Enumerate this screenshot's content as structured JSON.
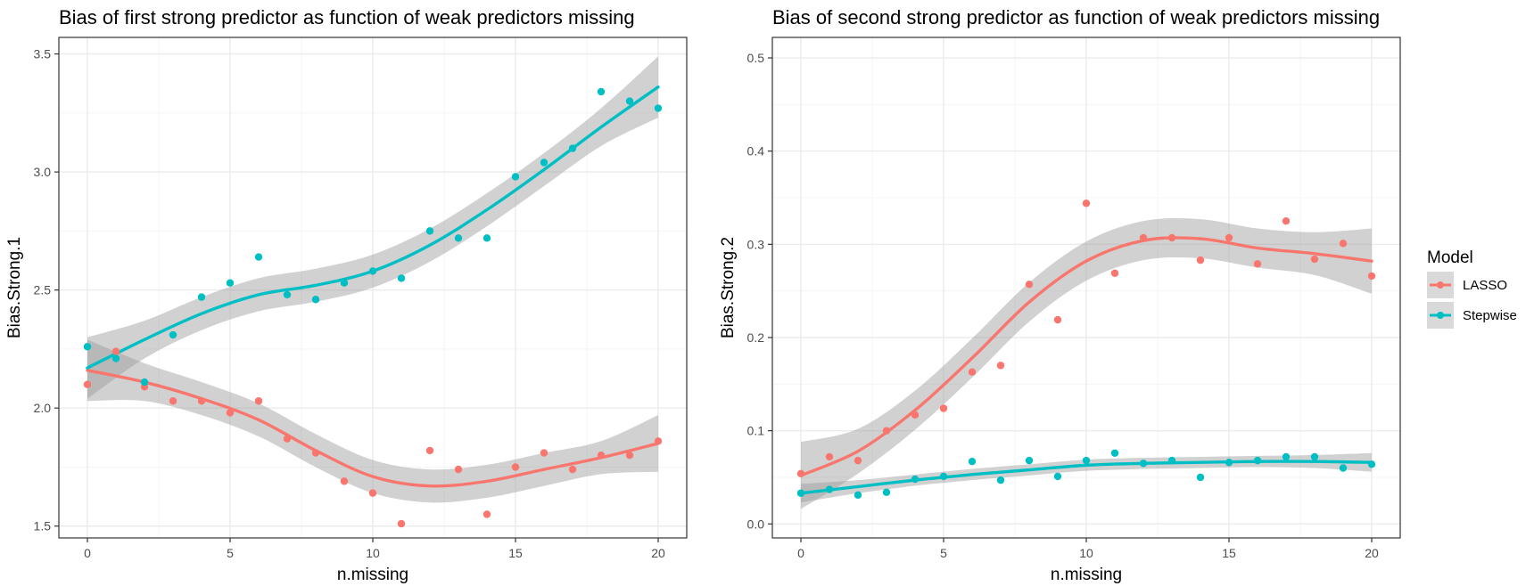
{
  "chart_data": [
    {
      "type": "scatter",
      "title": "Bias of first strong predictor as function of weak predictors missing",
      "xlabel": "n.missing",
      "ylabel": "Bias.Strong.1",
      "xlim": [
        -1,
        21
      ],
      "ylim": [
        1.45,
        3.57
      ],
      "xticks": [
        0,
        5,
        10,
        15,
        20
      ],
      "yticks": [
        1.5,
        2.0,
        2.5,
        3.0,
        3.5
      ],
      "ytick_labels": [
        "1.5",
        "2.0",
        "2.5",
        "3.0",
        "3.5"
      ],
      "grid": true,
      "series": [
        {
          "name": "LASSO",
          "color": "#f8766d",
          "x": [
            0,
            1,
            2,
            3,
            4,
            5,
            6,
            7,
            8,
            9,
            10,
            11,
            12,
            13,
            14,
            15,
            16,
            17,
            18,
            19,
            20
          ],
          "values": [
            2.1,
            2.24,
            2.09,
            2.03,
            2.03,
            1.98,
            2.03,
            1.87,
            1.81,
            1.69,
            1.64,
            1.51,
            1.82,
            1.74,
            1.55,
            1.75,
            1.81,
            1.74,
            1.8,
            1.8,
            1.86
          ],
          "smooth": {
            "x": [
              0,
              2,
              4,
              6,
              8,
              10,
              12,
              14,
              16,
              18,
              20
            ],
            "y": [
              2.16,
              2.11,
              2.04,
              1.95,
              1.82,
              1.71,
              1.67,
              1.69,
              1.74,
              1.79,
              1.85
            ],
            "band": [
              0.13,
              0.08,
              0.07,
              0.07,
              0.07,
              0.07,
              0.07,
              0.07,
              0.07,
              0.07,
              0.12
            ]
          }
        },
        {
          "name": "Stepwise",
          "color": "#00bfc4",
          "x": [
            0,
            1,
            2,
            3,
            4,
            5,
            6,
            7,
            8,
            9,
            10,
            11,
            12,
            13,
            14,
            15,
            16,
            17,
            18,
            19,
            20
          ],
          "values": [
            2.26,
            2.21,
            2.11,
            2.31,
            2.47,
            2.53,
            2.64,
            2.48,
            2.46,
            2.53,
            2.58,
            2.55,
            2.75,
            2.72,
            2.72,
            2.98,
            3.04,
            3.1,
            3.34,
            3.3,
            3.27
          ],
          "smooth": {
            "x": [
              0,
              2,
              4,
              6,
              8,
              10,
              12,
              14,
              16,
              18,
              20
            ],
            "y": [
              2.17,
              2.29,
              2.4,
              2.48,
              2.52,
              2.58,
              2.69,
              2.84,
              3.01,
              3.19,
              3.36
            ],
            "band": [
              0.13,
              0.08,
              0.07,
              0.07,
              0.07,
              0.07,
              0.07,
              0.07,
              0.07,
              0.08,
              0.13
            ]
          }
        }
      ]
    },
    {
      "type": "scatter",
      "title": "Bias of second strong predictor as function of weak predictors missing",
      "xlabel": "n.missing",
      "ylabel": "Bias.Strong.2",
      "xlim": [
        -1,
        21
      ],
      "ylim": [
        -0.015,
        0.522
      ],
      "xticks": [
        0,
        5,
        10,
        15,
        20
      ],
      "yticks": [
        0.0,
        0.1,
        0.2,
        0.3,
        0.4,
        0.5
      ],
      "ytick_labels": [
        "0.0",
        "0.1",
        "0.2",
        "0.3",
        "0.4",
        "0.5"
      ],
      "grid": true,
      "series": [
        {
          "name": "LASSO",
          "color": "#f8766d",
          "x": [
            0,
            1,
            2,
            3,
            4,
            5,
            6,
            7,
            8,
            9,
            10,
            11,
            12,
            13,
            14,
            15,
            16,
            17,
            18,
            19,
            20
          ],
          "values": [
            0.054,
            0.072,
            0.068,
            0.1,
            0.117,
            0.124,
            0.163,
            0.17,
            0.257,
            0.219,
            0.344,
            0.269,
            0.307,
            0.307,
            0.283,
            0.307,
            0.279,
            0.325,
            0.284,
            0.301,
            0.266
          ],
          "smooth": {
            "x": [
              0,
              2,
              4,
              6,
              8,
              10,
              12,
              14,
              16,
              18,
              20
            ],
            "y": [
              0.052,
              0.078,
              0.122,
              0.178,
              0.238,
              0.282,
              0.304,
              0.306,
              0.296,
              0.29,
              0.282
            ],
            "band": [
              0.036,
              0.024,
              0.021,
              0.021,
              0.021,
              0.021,
              0.021,
              0.021,
              0.021,
              0.023,
              0.035
            ]
          }
        },
        {
          "name": "Stepwise",
          "color": "#00bfc4",
          "x": [
            0,
            1,
            2,
            3,
            4,
            5,
            6,
            7,
            8,
            9,
            10,
            11,
            12,
            13,
            14,
            15,
            16,
            17,
            18,
            19,
            20
          ],
          "values": [
            0.033,
            0.037,
            0.031,
            0.034,
            0.048,
            0.051,
            0.067,
            0.047,
            0.068,
            0.051,
            0.068,
            0.076,
            0.065,
            0.068,
            0.05,
            0.066,
            0.068,
            0.072,
            0.072,
            0.06,
            0.064
          ],
          "smooth": {
            "x": [
              0,
              2,
              4,
              6,
              8,
              10,
              12,
              14,
              16,
              18,
              20
            ],
            "y": [
              0.033,
              0.04,
              0.047,
              0.053,
              0.058,
              0.063,
              0.065,
              0.066,
              0.067,
              0.067,
              0.066
            ],
            "band": [
              0.01,
              0.007,
              0.006,
              0.006,
              0.006,
              0.006,
              0.006,
              0.006,
              0.006,
              0.007,
              0.01
            ]
          }
        }
      ]
    }
  ],
  "legend": {
    "title": "Model",
    "position": "right",
    "items": [
      {
        "label": "LASSO",
        "color": "#f8766d"
      },
      {
        "label": "Stepwise",
        "color": "#00bfc4"
      }
    ]
  },
  "style": {
    "panel_bg": "#ffffff",
    "grid_major": "#ebebeb",
    "grid_minor": "#f5f5f5",
    "border": "#333333",
    "band": "#999999"
  }
}
